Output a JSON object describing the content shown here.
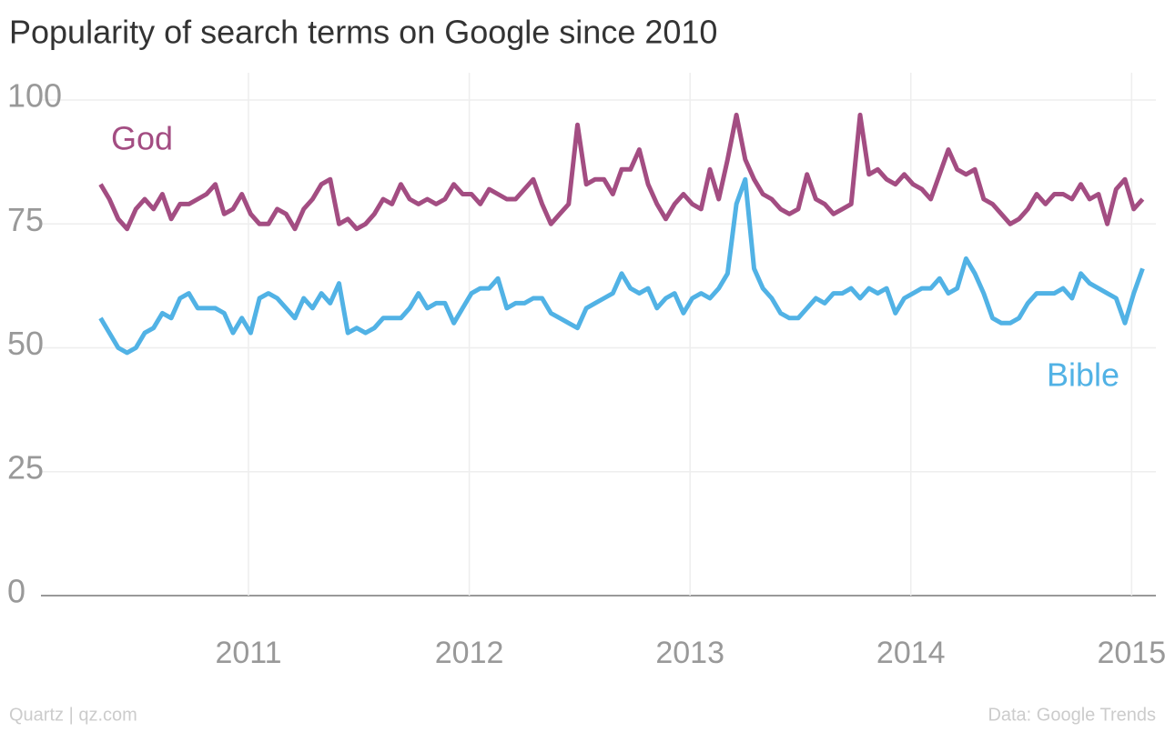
{
  "chart_data": {
    "type": "line",
    "title": "Popularity of search terms on Google since 2010",
    "source_left": "Quartz | qz.com",
    "source_right": "Data: Google Trends",
    "x": [
      2010.33,
      2010.37,
      2010.41,
      2010.45,
      2010.49,
      2010.53,
      2010.57,
      2010.61,
      2010.65,
      2010.69,
      2010.73,
      2010.77,
      2010.81,
      2010.85,
      2010.89,
      2010.93,
      2010.97,
      2011.01,
      2011.05,
      2011.09,
      2011.13,
      2011.17,
      2011.21,
      2011.25,
      2011.29,
      2011.33,
      2011.37,
      2011.41,
      2011.45,
      2011.49,
      2011.53,
      2011.57,
      2011.61,
      2011.65,
      2011.69,
      2011.73,
      2011.77,
      2011.81,
      2011.85,
      2011.89,
      2011.93,
      2011.97,
      2012.01,
      2012.05,
      2012.09,
      2012.13,
      2012.17,
      2012.21,
      2012.25,
      2012.29,
      2012.33,
      2012.37,
      2012.41,
      2012.45,
      2012.49,
      2012.53,
      2012.57,
      2012.61,
      2012.65,
      2012.69,
      2012.73,
      2012.77,
      2012.81,
      2012.85,
      2012.89,
      2012.93,
      2012.97,
      2013.01,
      2013.05,
      2013.09,
      2013.13,
      2013.17,
      2013.21,
      2013.25,
      2013.29,
      2013.33,
      2013.37,
      2013.41,
      2013.45,
      2013.49,
      2013.53,
      2013.57,
      2013.61,
      2013.65,
      2013.69,
      2013.73,
      2013.77,
      2013.81,
      2013.85,
      2013.89,
      2013.93,
      2013.97,
      2014.01,
      2014.05,
      2014.09,
      2014.13,
      2014.17,
      2014.21,
      2014.25,
      2014.29,
      2014.33,
      2014.37,
      2014.41,
      2014.45,
      2014.49,
      2014.53,
      2014.57,
      2014.61,
      2014.65,
      2014.69,
      2014.73,
      2014.77,
      2014.81,
      2014.85,
      2014.89,
      2014.93,
      2014.97,
      2015.01,
      2015.05
    ],
    "series": [
      {
        "name": "God",
        "color": "#a34d82",
        "values": [
          83,
          80,
          76,
          74,
          78,
          80,
          78,
          81,
          76,
          79,
          79,
          80,
          81,
          83,
          77,
          78,
          81,
          77,
          75,
          75,
          78,
          77,
          74,
          78,
          80,
          83,
          84,
          75,
          76,
          74,
          75,
          77,
          80,
          79,
          83,
          80,
          79,
          80,
          79,
          80,
          83,
          81,
          81,
          79,
          82,
          81,
          80,
          80,
          82,
          84,
          79,
          75,
          77,
          79,
          95,
          83,
          84,
          84,
          81,
          86,
          86,
          90,
          83,
          79,
          76,
          79,
          81,
          79,
          78,
          86,
          80,
          88,
          97,
          88,
          84,
          81,
          80,
          78,
          77,
          78,
          85,
          80,
          79,
          77,
          78,
          79,
          97,
          85,
          86,
          84,
          83,
          85,
          83,
          82,
          80,
          85,
          90,
          86,
          85,
          86,
          80,
          79,
          77,
          75,
          76,
          78,
          81,
          79,
          81,
          81,
          80,
          83,
          80,
          81,
          75,
          82,
          84,
          78,
          80
        ]
      },
      {
        "name": "Bible",
        "color": "#51b2e5",
        "values": [
          56,
          53,
          50,
          49,
          50,
          53,
          54,
          57,
          56,
          60,
          61,
          58,
          58,
          58,
          57,
          53,
          56,
          53,
          60,
          61,
          60,
          58,
          56,
          60,
          58,
          61,
          59,
          63,
          53,
          54,
          53,
          54,
          56,
          56,
          56,
          58,
          61,
          58,
          59,
          59,
          55,
          58,
          61,
          62,
          62,
          64,
          58,
          59,
          59,
          60,
          60,
          57,
          56,
          55,
          54,
          58,
          59,
          60,
          61,
          65,
          62,
          61,
          62,
          58,
          60,
          61,
          57,
          60,
          61,
          60,
          62,
          65,
          79,
          84,
          66,
          62,
          60,
          57,
          56,
          56,
          58,
          60,
          59,
          61,
          61,
          62,
          60,
          62,
          61,
          62,
          57,
          60,
          61,
          62,
          62,
          64,
          61,
          62,
          68,
          65,
          61,
          56,
          55,
          55,
          56,
          59,
          61,
          61,
          61,
          62,
          60,
          65,
          63,
          62,
          61,
          60,
          55,
          61,
          66
        ]
      }
    ],
    "xlim": [
      2010.06,
      2015.11
    ],
    "xticks": [
      2011,
      2012,
      2013,
      2014,
      2015
    ],
    "ylim": [
      0,
      100
    ],
    "yticks": [
      0,
      25,
      50,
      75,
      100
    ],
    "grid": true
  }
}
